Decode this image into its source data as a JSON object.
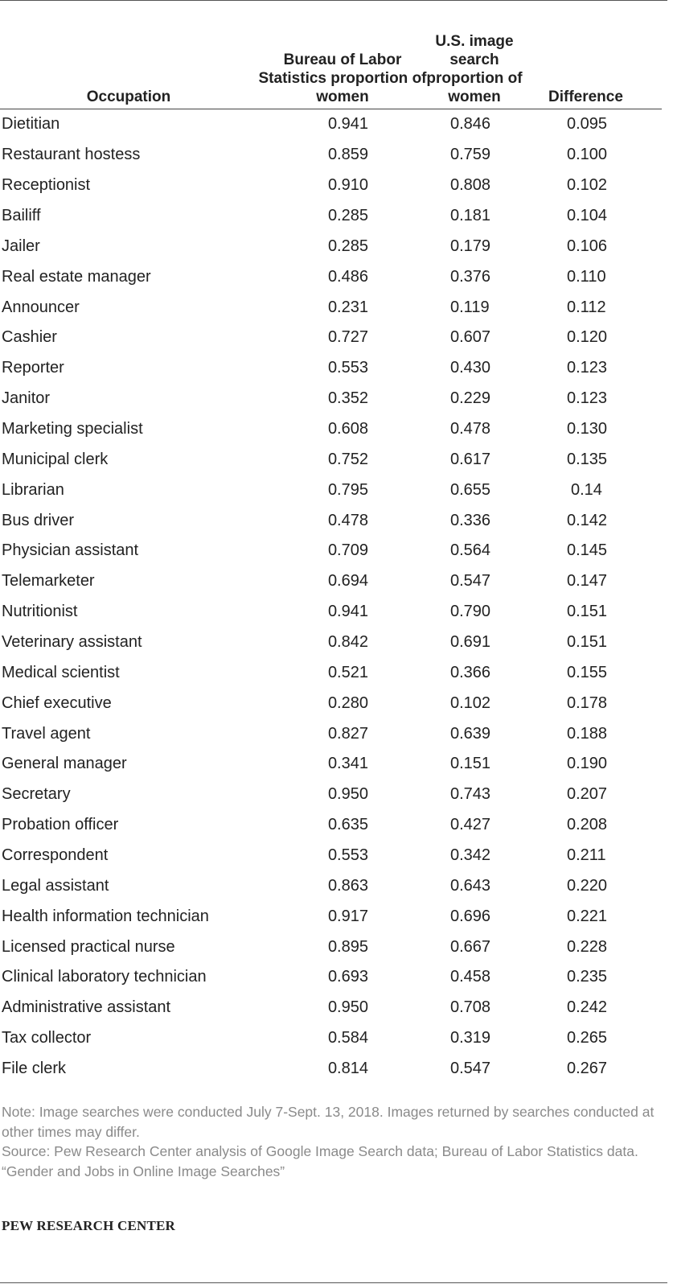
{
  "table": {
    "headers": {
      "occupation": "Occupation",
      "bls": "Bureau of Labor Statistics proportion of women",
      "image": "U.S. image search proportion of women",
      "difference": "Difference"
    },
    "rows": [
      {
        "occupation": "Dietitian",
        "bls": "0.941",
        "image": "0.846",
        "difference": "0.095"
      },
      {
        "occupation": "Restaurant hostess",
        "bls": "0.859",
        "image": "0.759",
        "difference": "0.100"
      },
      {
        "occupation": "Receptionist",
        "bls": "0.910",
        "image": "0.808",
        "difference": "0.102"
      },
      {
        "occupation": "Bailiff",
        "bls": "0.285",
        "image": "0.181",
        "difference": "0.104"
      },
      {
        "occupation": "Jailer",
        "bls": "0.285",
        "image": "0.179",
        "difference": "0.106"
      },
      {
        "occupation": "Real estate manager",
        "bls": "0.486",
        "image": "0.376",
        "difference": "0.110"
      },
      {
        "occupation": "Announcer",
        "bls": "0.231",
        "image": "0.119",
        "difference": "0.112"
      },
      {
        "occupation": "Cashier",
        "bls": "0.727",
        "image": "0.607",
        "difference": "0.120"
      },
      {
        "occupation": "Reporter",
        "bls": "0.553",
        "image": "0.430",
        "difference": "0.123"
      },
      {
        "occupation": "Janitor",
        "bls": "0.352",
        "image": "0.229",
        "difference": "0.123"
      },
      {
        "occupation": "Marketing specialist",
        "bls": "0.608",
        "image": "0.478",
        "difference": "0.130"
      },
      {
        "occupation": "Municipal clerk",
        "bls": "0.752",
        "image": "0.617",
        "difference": "0.135"
      },
      {
        "occupation": "Librarian",
        "bls": "0.795",
        "image": "0.655",
        "difference": "0.14"
      },
      {
        "occupation": "Bus driver",
        "bls": "0.478",
        "image": "0.336",
        "difference": "0.142"
      },
      {
        "occupation": "Physician assistant",
        "bls": "0.709",
        "image": "0.564",
        "difference": "0.145"
      },
      {
        "occupation": "Telemarketer",
        "bls": "0.694",
        "image": "0.547",
        "difference": "0.147"
      },
      {
        "occupation": "Nutritionist",
        "bls": "0.941",
        "image": "0.790",
        "difference": "0.151"
      },
      {
        "occupation": "Veterinary assistant",
        "bls": "0.842",
        "image": "0.691",
        "difference": "0.151"
      },
      {
        "occupation": "Medical scientist",
        "bls": "0.521",
        "image": "0.366",
        "difference": "0.155"
      },
      {
        "occupation": "Chief executive",
        "bls": "0.280",
        "image": "0.102",
        "difference": "0.178"
      },
      {
        "occupation": "Travel agent",
        "bls": "0.827",
        "image": "0.639",
        "difference": "0.188"
      },
      {
        "occupation": "General manager",
        "bls": "0.341",
        "image": "0.151",
        "difference": "0.190"
      },
      {
        "occupation": "Secretary",
        "bls": "0.950",
        "image": "0.743",
        "difference": "0.207"
      },
      {
        "occupation": "Probation officer",
        "bls": "0.635",
        "image": "0.427",
        "difference": "0.208"
      },
      {
        "occupation": "Correspondent",
        "bls": "0.553",
        "image": "0.342",
        "difference": "0.211"
      },
      {
        "occupation": "Legal assistant",
        "bls": "0.863",
        "image": "0.643",
        "difference": "0.220"
      },
      {
        "occupation": "Health information technician",
        "bls": "0.917",
        "image": "0.696",
        "difference": "0.221"
      },
      {
        "occupation": "Licensed practical nurse",
        "bls": "0.895",
        "image": "0.667",
        "difference": "0.228"
      },
      {
        "occupation": "Clinical laboratory technician",
        "bls": "0.693",
        "image": "0.458",
        "difference": "0.235"
      },
      {
        "occupation": "Administrative assistant",
        "bls": "0.950",
        "image": "0.708",
        "difference": "0.242"
      },
      {
        "occupation": "Tax collector",
        "bls": "0.584",
        "image": "0.319",
        "difference": "0.265"
      },
      {
        "occupation": "File clerk",
        "bls": "0.814",
        "image": "0.547",
        "difference": "0.267"
      }
    ]
  },
  "notes": {
    "note": "Note: Image searches were conducted July 7-Sept. 13, 2018. Images returned by searches conducted at other times may differ.",
    "source": "Source: Pew Research Center analysis of Google Image Search data; Bureau of Labor Statistics data.",
    "report": "“Gender and Jobs in Online Image Searches”"
  },
  "credit": "PEW RESEARCH CENTER"
}
